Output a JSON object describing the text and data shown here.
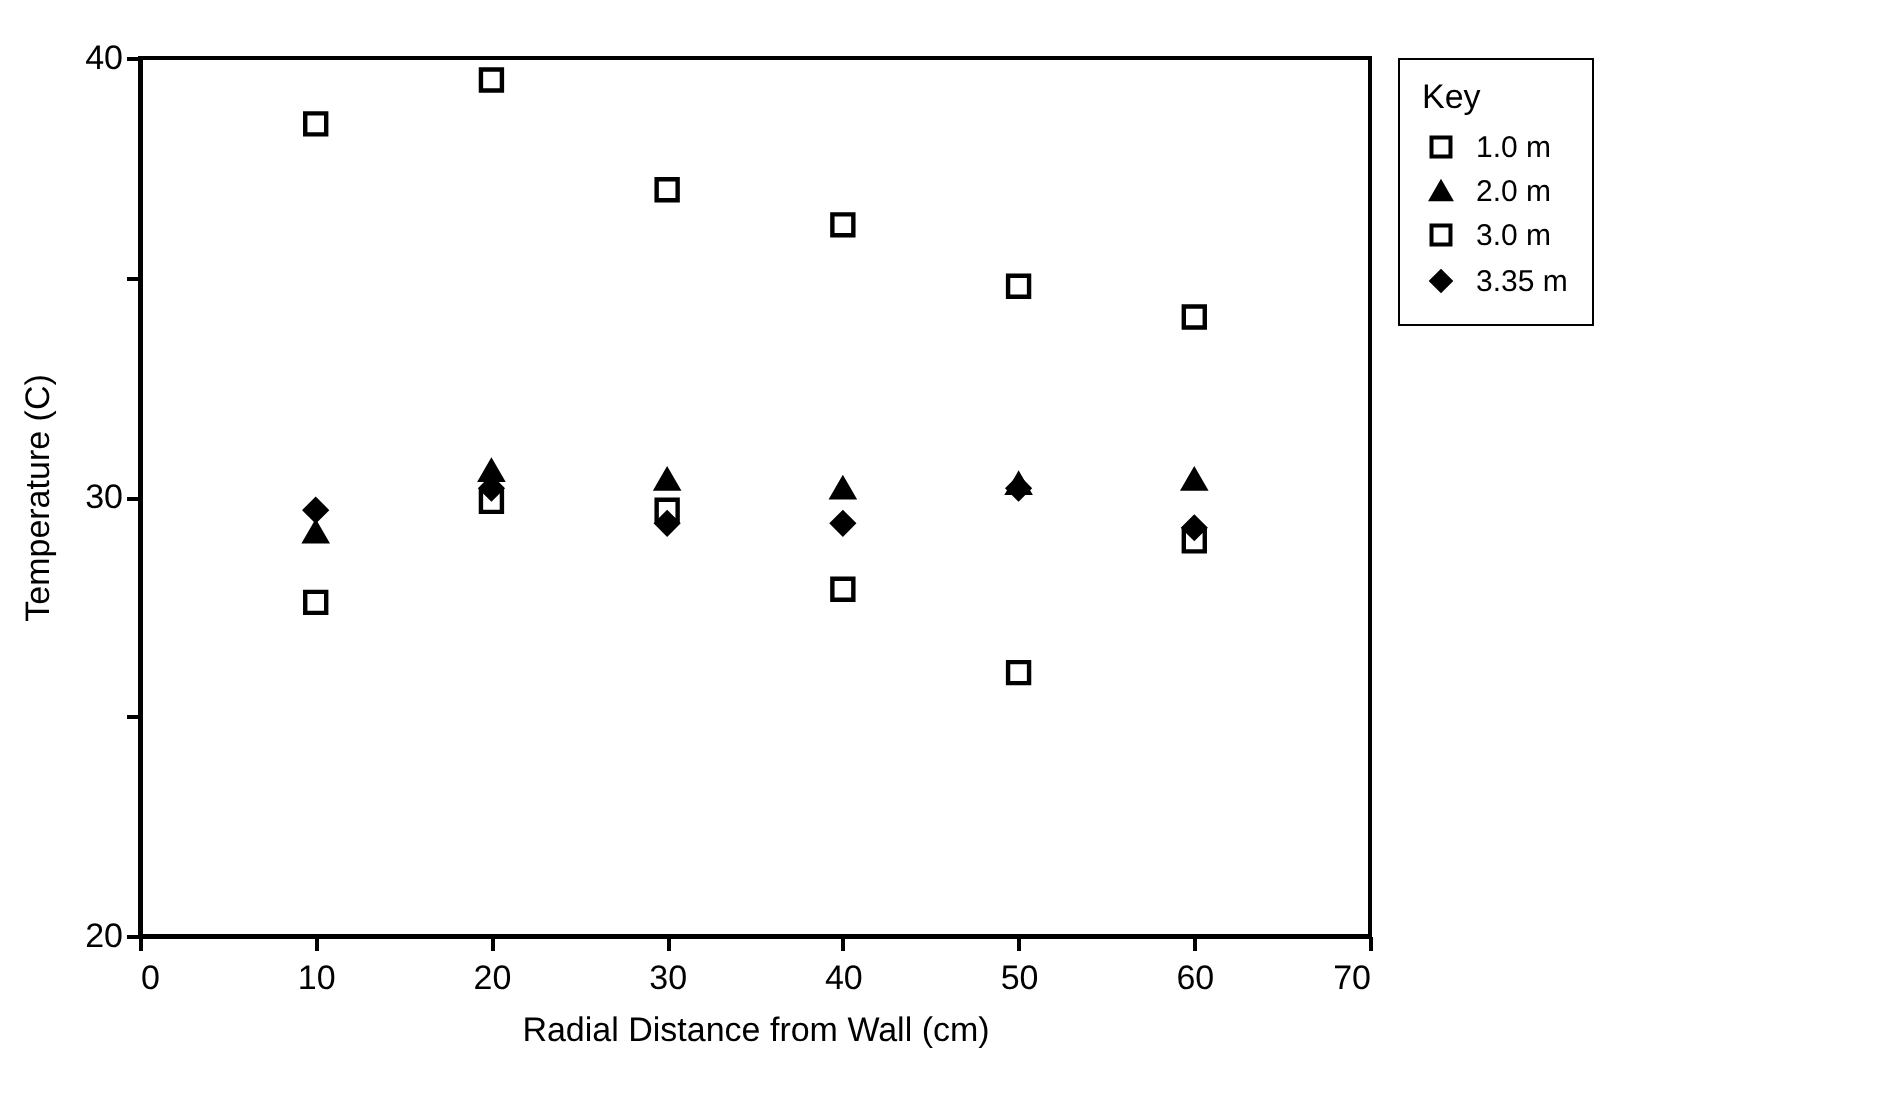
{
  "chart_data": {
    "type": "scatter",
    "xlabel": "Radial Distance from Wall (cm)",
    "ylabel": "Temperature (C)",
    "legend_title": "Key",
    "legend": "right",
    "x": [
      10,
      20,
      30,
      40,
      50,
      60
    ],
    "xlim": [
      0,
      70
    ],
    "xticks": [
      0,
      10,
      20,
      30,
      40,
      50,
      60,
      70
    ],
    "ylim": [
      20,
      40
    ],
    "yticks": [
      20,
      {
        "value": 25,
        "label": null
      },
      30,
      {
        "value": 35,
        "label": null
      },
      40
    ],
    "grid": false,
    "series": [
      {
        "name": "1.0 m",
        "color": "#000000",
        "marker": "square",
        "values": [
          38.5,
          39.5,
          37.0,
          36.2,
          34.8,
          34.1
        ]
      },
      {
        "name": "2.0 m",
        "color": "#000000",
        "marker": "triangle",
        "values": [
          29.2,
          30.6,
          30.4,
          30.2,
          30.3,
          30.4
        ]
      },
      {
        "name": "3.0 m",
        "color": "#000000",
        "marker": "square",
        "values": [
          27.6,
          29.9,
          29.7,
          27.9,
          26.0,
          29.0
        ]
      },
      {
        "name": "3.35 m",
        "color": "#000000",
        "marker": "diamond",
        "values": [
          29.7,
          30.2,
          29.4,
          29.4,
          30.2,
          29.3
        ]
      }
    ]
  }
}
